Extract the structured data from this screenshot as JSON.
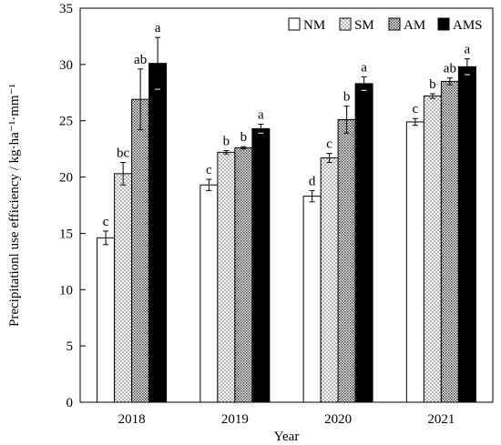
{
  "chart_data": {
    "type": "bar",
    "categories": [
      "2018",
      "2019",
      "2020",
      "2021"
    ],
    "series": [
      {
        "name": "NM",
        "pattern": "none",
        "values": [
          14.6,
          19.3,
          18.3,
          24.9
        ],
        "errors": [
          0.6,
          0.5,
          0.5,
          0.3
        ],
        "letters": [
          "c",
          "c",
          "d",
          "c"
        ]
      },
      {
        "name": "SM",
        "pattern": "dots",
        "values": [
          20.3,
          22.2,
          21.7,
          27.2
        ],
        "errors": [
          1.0,
          0.15,
          0.4,
          0.2
        ],
        "letters": [
          "bc",
          "b",
          "c",
          "b"
        ]
      },
      {
        "name": "AM",
        "pattern": "dense",
        "values": [
          26.9,
          22.6,
          25.1,
          28.5
        ],
        "errors": [
          2.7,
          0.1,
          1.2,
          0.3
        ],
        "letters": [
          "ab",
          "b",
          "b",
          "ab"
        ]
      },
      {
        "name": "AMS",
        "pattern": "solid",
        "values": [
          30.1,
          24.3,
          28.3,
          29.8
        ],
        "errors": [
          2.3,
          0.4,
          0.6,
          0.7
        ],
        "letters": [
          "a",
          "a",
          "a",
          "a"
        ]
      }
    ],
    "xlabel": "Year",
    "ylabel": "Precipitationl use efficiency / kg·ha⁻¹·mm⁻¹",
    "ylim": [
      0,
      35
    ],
    "yticks": [
      "0",
      "5",
      "10",
      "15",
      "20",
      "25",
      "30",
      "35"
    ],
    "grid": false,
    "legend_position": "top-right",
    "colors": {
      "bar_fill": "#ffffff",
      "ink": "#000000"
    }
  }
}
